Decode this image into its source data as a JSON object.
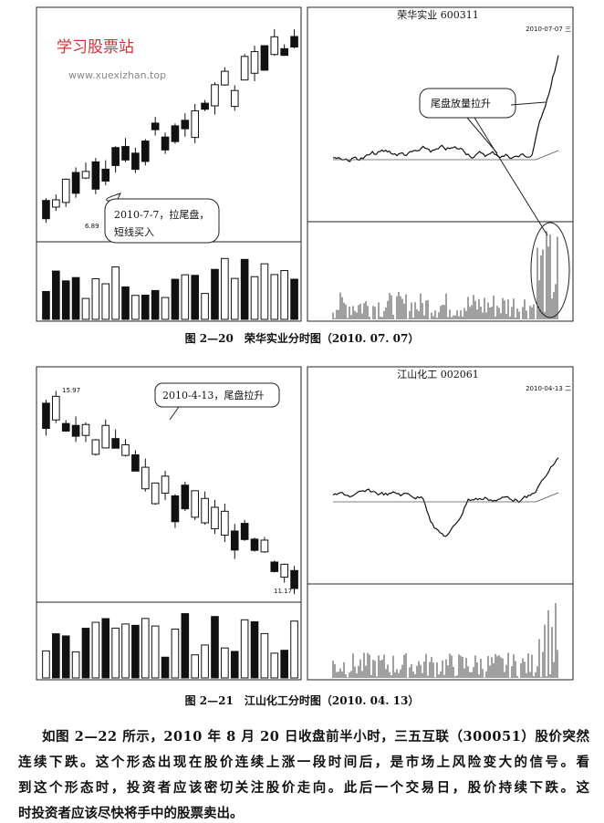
{
  "watermark": {
    "name": "学习股票站",
    "url": "www.xuexizhan.top"
  },
  "figures": [
    {
      "stock_title": "荣华实业 600311",
      "date": "2010-07-07 三",
      "low_label": "6.89",
      "annotation": [
        "2010-7-7，拉尾盘，",
        "短线买入"
      ],
      "annotation2": "尾盘放量拉升",
      "caption": "图 2—20　荣华实业分时图（2010. 07. 07）"
    },
    {
      "stock_title": "江山化工 002061",
      "date": "2010-04-13 二",
      "high_label": "15.97",
      "low_label": "11.17",
      "annotation": [
        "2010-4-13，尾盘拉升"
      ],
      "caption": "图 2—21　江山化工分时图（2010. 04. 13）"
    }
  ],
  "paragraph": [
    "如图 2—22 所示，2010 年 8 月 20 日收盘前半小时，三五互联（300051）股价突然",
    "连续下跌。这个形态出现在股价连续上涨一段时间后，是市场上风险变大的信号。看",
    "到这个形态时，投资者应该密切关注股价走向。此后一个交易日，股价持续下跌。这",
    "时投资者应该尽快将手中的股票卖出。"
  ]
}
